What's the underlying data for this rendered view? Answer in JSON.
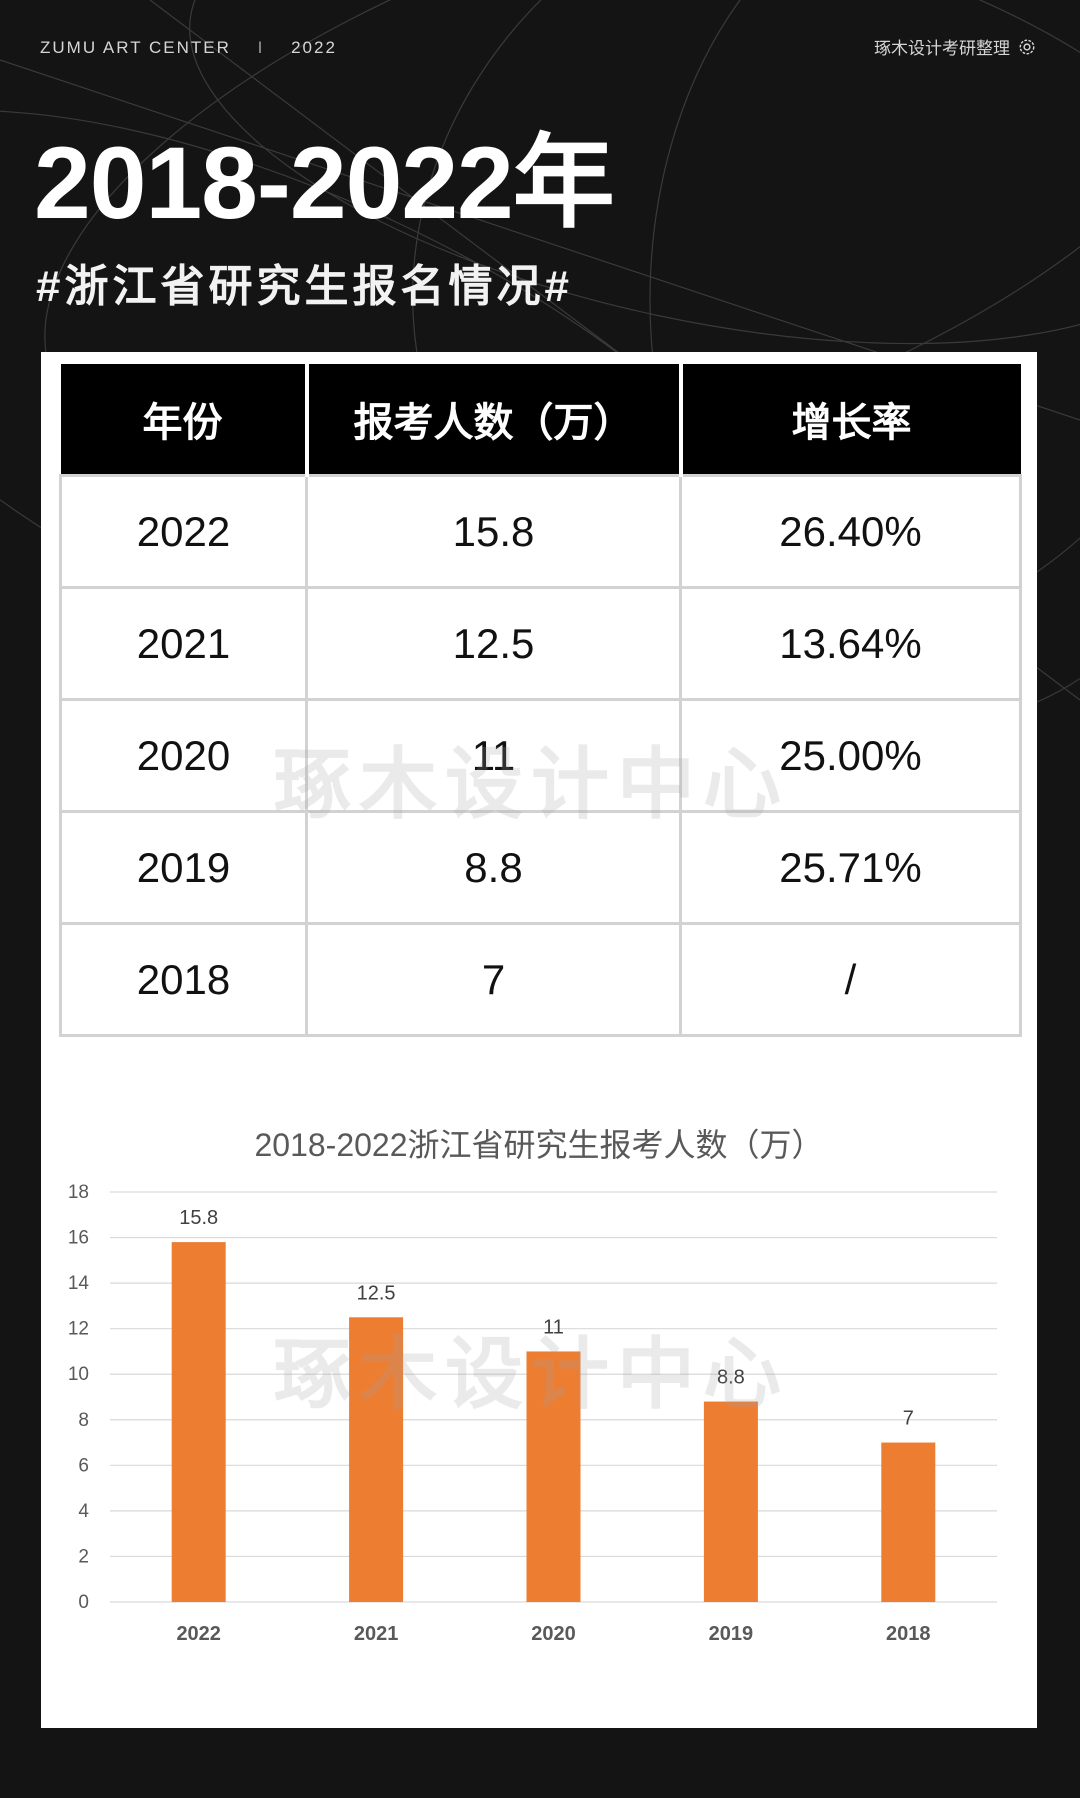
{
  "header": {
    "brand": "ZUMU ART CENTER",
    "separator": "I",
    "year": "2022",
    "credit": "琢木设计考研整理"
  },
  "title": "2018-2022年",
  "subtitle": "#浙江省研究生报名情况#",
  "watermark": "琢木设计中心",
  "table": {
    "headers": [
      "年份",
      "报考人数（万）",
      "增长率"
    ],
    "rows": [
      [
        "2022",
        "15.8",
        "26.40%"
      ],
      [
        "2021",
        "12.5",
        "13.64%"
      ],
      [
        "2020",
        "11",
        "25.00%"
      ],
      [
        "2019",
        "8.8",
        "25.71%"
      ],
      [
        "2018",
        "7",
        "/"
      ]
    ]
  },
  "chart_data": {
    "type": "bar",
    "title": "2018-2022浙江省研究生报考人数（万）",
    "categories": [
      "2022",
      "2021",
      "2020",
      "2019",
      "2018"
    ],
    "values": [
      15.8,
      12.5,
      11,
      8.8,
      7
    ],
    "data_labels": [
      "15.8",
      "12.5",
      "11",
      "8.8",
      "7"
    ],
    "xlabel": "",
    "ylabel": "",
    "ylim": [
      0,
      18
    ],
    "yticks": [
      0,
      2,
      4,
      6,
      8,
      10,
      12,
      14,
      16,
      18
    ],
    "grid": true,
    "bar_color": "#ED7D31"
  },
  "colors": {
    "background": "#141414",
    "header_row": "#000000",
    "bar": "#ED7D31"
  },
  "icons": [
    "gear-icon"
  ]
}
